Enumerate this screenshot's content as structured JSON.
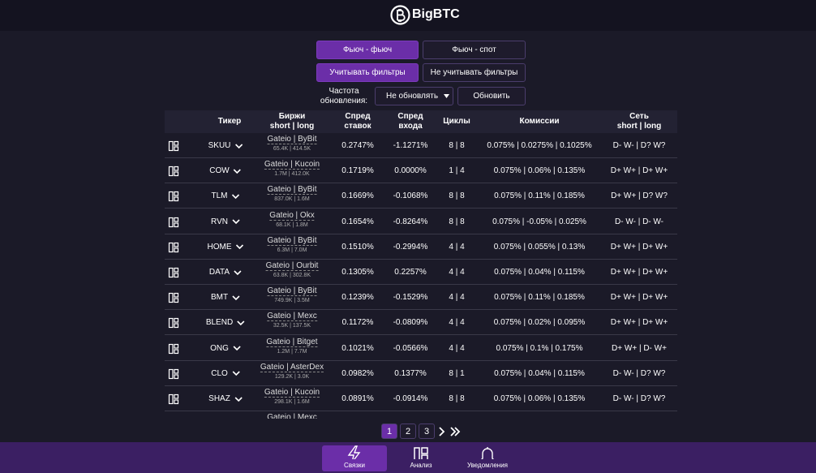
{
  "header": {
    "brand": "BigBTC"
  },
  "controls": {
    "mode_buttons": [
      "Фьюч - фьюч",
      "Фьюч - спот"
    ],
    "filter_buttons": [
      "Учитывать фильтры",
      "Не учитывать фильтры"
    ],
    "frequency_label": "Частота обновления:",
    "frequency_select": "Не обновлять",
    "refresh_button": "Обновить"
  },
  "table": {
    "columns": [
      [
        "Тикер"
      ],
      [
        "Биржи",
        "short | long"
      ],
      [
        "Спред",
        "ставок"
      ],
      [
        "Спред",
        "входа"
      ],
      [
        "Циклы"
      ],
      [
        "Комиссии"
      ],
      [
        "Сеть",
        "short | long"
      ]
    ],
    "rows": [
      {
        "ticker": "SKUU",
        "exchanges": "Gateio | ByBit",
        "volumes": "65.4K | 414.5K",
        "spread_rates": "0.2747%",
        "spread_entry": "-1.1271%",
        "cycles": "8 | 8",
        "commissions": "0.075% | 0.0275% | 0.1025%",
        "network": "D- W- | D? W?"
      },
      {
        "ticker": "COW",
        "exchanges": "Gateio | Kucoin",
        "volumes": "1.7M | 412.0K",
        "spread_rates": "0.1719%",
        "spread_entry": "0.0000%",
        "cycles": "1 | 4",
        "commissions": "0.075% | 0.06% | 0.135%",
        "network": "D+ W+ | D+ W+"
      },
      {
        "ticker": "TLM",
        "exchanges": "Gateio | ByBit",
        "volumes": "837.0K | 1.6M",
        "spread_rates": "0.1669%",
        "spread_entry": "-0.1068%",
        "cycles": "8 | 8",
        "commissions": "0.075% | 0.11% | 0.185%",
        "network": "D+ W+ | D? W?"
      },
      {
        "ticker": "RVN",
        "exchanges": "Gateio | Okx",
        "volumes": "68.1K | 1.8M",
        "spread_rates": "0.1654%",
        "spread_entry": "-0.8264%",
        "cycles": "8 | 8",
        "commissions": "0.075% | -0.05% | 0.025%",
        "network": "D- W- | D- W-"
      },
      {
        "ticker": "HOME",
        "exchanges": "Gateio | ByBit",
        "volumes": "6.3M | 7.0M",
        "spread_rates": "0.1510%",
        "spread_entry": "-0.2994%",
        "cycles": "4 | 4",
        "commissions": "0.075% | 0.055% | 0.13%",
        "network": "D+ W+ | D+ W+"
      },
      {
        "ticker": "DATA",
        "exchanges": "Gateio | Ourbit",
        "volumes": "63.8K | 302.8K",
        "spread_rates": "0.1305%",
        "spread_entry": "0.2257%",
        "cycles": "4 | 4",
        "commissions": "0.075% | 0.04% | 0.115%",
        "network": "D+ W+ | D+ W+"
      },
      {
        "ticker": "BMT",
        "exchanges": "Gateio | ByBit",
        "volumes": "749.9K | 3.5M",
        "spread_rates": "0.1239%",
        "spread_entry": "-0.1529%",
        "cycles": "4 | 4",
        "commissions": "0.075% | 0.11% | 0.185%",
        "network": "D+ W+ | D+ W+"
      },
      {
        "ticker": "BLEND",
        "exchanges": "Gateio | Mexc",
        "volumes": "32.5K | 137.5K",
        "spread_rates": "0.1172%",
        "spread_entry": "-0.0809%",
        "cycles": "4 | 4",
        "commissions": "0.075% | 0.02% | 0.095%",
        "network": "D+ W+ | D+ W+"
      },
      {
        "ticker": "ONG",
        "exchanges": "Gateio | Bitget",
        "volumes": "1.2M | 7.7M",
        "spread_rates": "0.1021%",
        "spread_entry": "-0.0566%",
        "cycles": "4 | 4",
        "commissions": "0.075% | 0.1% | 0.175%",
        "network": "D+ W+ | D- W+"
      },
      {
        "ticker": "CLO",
        "exchanges": "Gateio | AsterDex",
        "volumes": "129.2K | 3.0K",
        "spread_rates": "0.0982%",
        "spread_entry": "0.1377%",
        "cycles": "8 | 1",
        "commissions": "0.075% | 0.04% | 0.115%",
        "network": "D- W- | D? W?"
      },
      {
        "ticker": "SHAZ",
        "exchanges": "Gateio | Kucoin",
        "volumes": "298.1K | 1.6M",
        "spread_rates": "0.0891%",
        "spread_entry": "-0.0914%",
        "cycles": "8 | 8",
        "commissions": "0.075% | 0.06% | 0.135%",
        "network": "D- W- | D? W?"
      }
    ],
    "partial_row": "Gateio | Mexc"
  },
  "pagination": {
    "pages": [
      "1",
      "2",
      "3"
    ]
  },
  "nav": {
    "items": [
      "Связки",
      "Анализ",
      "Уведомления"
    ]
  }
}
